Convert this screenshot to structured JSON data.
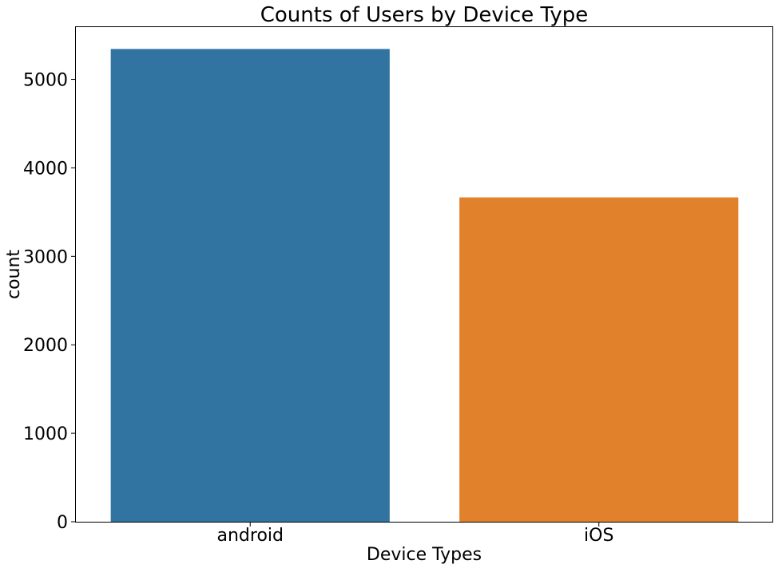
{
  "chart_data": {
    "type": "bar",
    "title": "Counts of Users by Device Type",
    "xlabel": "Device Types",
    "ylabel": "count",
    "categories": [
      "android",
      "iOS"
    ],
    "values": [
      5344,
      3666
    ],
    "colors": [
      "#3274a1",
      "#e1812c"
    ],
    "ylim": [
      0,
      5600
    ],
    "yticks": [
      0,
      1000,
      2000,
      3000,
      4000,
      5000
    ],
    "ytick_labels": [
      "0",
      "1000",
      "2000",
      "3000",
      "4000",
      "5000"
    ],
    "grid": false,
    "legend": "none"
  }
}
